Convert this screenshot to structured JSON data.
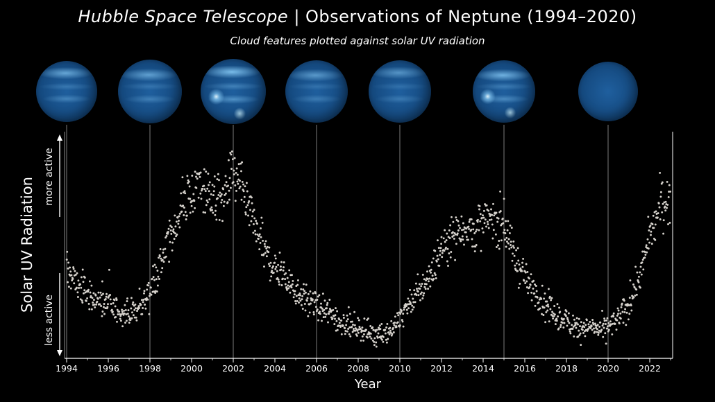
{
  "header": {
    "title_italic": "Hubble Space Telescope",
    "title_rest": " | Observations of Neptune (1994–2020)",
    "subtitle": "Cloud features plotted against solar UV radiation"
  },
  "planets": [
    {
      "year": 1994,
      "name": "neptune-1994",
      "cloud_level": 0.55
    },
    {
      "year": 1998,
      "name": "neptune-1998",
      "cloud_level": 0.45
    },
    {
      "year": 2002,
      "name": "neptune-2002",
      "cloud_level": 0.85
    },
    {
      "year": 2006,
      "name": "neptune-2006",
      "cloud_level": 0.35
    },
    {
      "year": 2010,
      "name": "neptune-2010",
      "cloud_level": 0.3
    },
    {
      "year": 2015,
      "name": "neptune-2015",
      "cloud_level": 0.7
    },
    {
      "year": 2020,
      "name": "neptune-2020",
      "cloud_level": 0.05
    }
  ],
  "colors": {
    "background": "#000000",
    "points": "#d6d2cc",
    "planet_base": "#1f5f9e",
    "planet_bright": "#8fd4ff",
    "axis": "#ffffff",
    "guide_lines": "#8a8a8a"
  },
  "chart_data": {
    "type": "scatter",
    "title": "Hubble Space Telescope | Observations of Neptune (1994–2020)",
    "subtitle": "Cloud features plotted against solar UV radiation",
    "xlabel": "Year",
    "ylabel": "Solar UV Radiation",
    "y_more_label": "more active",
    "y_less_label": "less active",
    "xlim": [
      1993.9,
      2023.1
    ],
    "ylim": [
      0,
      1
    ],
    "x_ticks": [
      "1994",
      "1996",
      "1998",
      "2000",
      "2002",
      "2004",
      "2006",
      "2008",
      "2010",
      "2012",
      "2014",
      "2016",
      "2018",
      "2020",
      "2022"
    ],
    "observation_years": [
      1994,
      1998,
      2002,
      2006,
      2010,
      2015,
      2020
    ],
    "grid": false,
    "series": [
      {
        "name": "",
        "points_per_year": 48,
        "noise": 0.045,
        "x": [
          1994.0,
          1994.5,
          1995.0,
          1995.5,
          1996.0,
          1996.5,
          1997.0,
          1997.5,
          1998.0,
          1998.5,
          1999.0,
          1999.5,
          2000.0,
          2000.5,
          2001.0,
          2001.5,
          2002.0,
          2002.5,
          2003.0,
          2003.5,
          2004.0,
          2004.5,
          2005.0,
          2005.5,
          2006.0,
          2006.5,
          2007.0,
          2007.5,
          2008.0,
          2008.5,
          2009.0,
          2009.5,
          2010.0,
          2010.5,
          2011.0,
          2011.5,
          2012.0,
          2012.5,
          2013.0,
          2013.5,
          2014.0,
          2014.5,
          2015.0,
          2015.5,
          2016.0,
          2016.5,
          2017.0,
          2017.5,
          2018.0,
          2018.5,
          2019.0,
          2019.5,
          2020.0,
          2020.5,
          2021.0,
          2021.5,
          2022.0,
          2022.5,
          2023.0
        ],
        "y": [
          0.4,
          0.33,
          0.28,
          0.25,
          0.22,
          0.2,
          0.19,
          0.21,
          0.3,
          0.42,
          0.55,
          0.68,
          0.76,
          0.8,
          0.74,
          0.72,
          0.86,
          0.74,
          0.6,
          0.48,
          0.4,
          0.36,
          0.3,
          0.26,
          0.22,
          0.19,
          0.16,
          0.13,
          0.12,
          0.1,
          0.09,
          0.1,
          0.17,
          0.23,
          0.3,
          0.38,
          0.5,
          0.56,
          0.6,
          0.58,
          0.62,
          0.64,
          0.61,
          0.46,
          0.36,
          0.29,
          0.22,
          0.18,
          0.15,
          0.13,
          0.12,
          0.11,
          0.12,
          0.16,
          0.23,
          0.36,
          0.55,
          0.7,
          0.74
        ]
      }
    ]
  }
}
